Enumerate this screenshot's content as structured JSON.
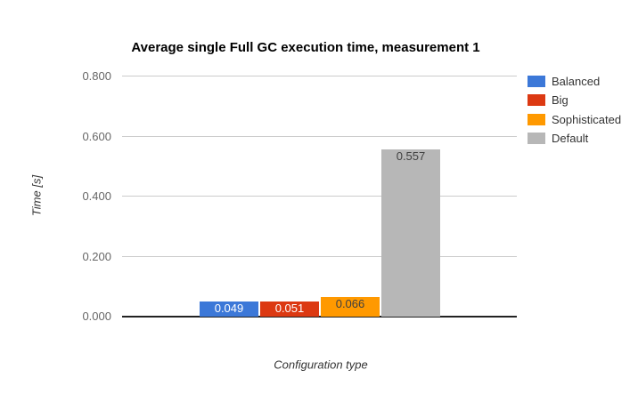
{
  "chart_data": {
    "type": "bar",
    "title": "Average single Full GC execution time, measurement 1",
    "xlabel": "Configuration type",
    "ylabel": "Time [s]",
    "series": [
      {
        "name": "Balanced",
        "value": 0.049,
        "label": "0.049",
        "color": "#3c78d8",
        "label_color": "#ffffff"
      },
      {
        "name": "Big",
        "value": 0.051,
        "label": "0.051",
        "color": "#dc3912",
        "label_color": "#ffffff"
      },
      {
        "name": "Sophisticated",
        "value": 0.066,
        "label": "0.066",
        "color": "#ff9900",
        "label_color": "#404040"
      },
      {
        "name": "Default",
        "value": 0.557,
        "label": "0.557",
        "color": "#b7b7b7",
        "label_color": "#404040"
      }
    ],
    "ylim": [
      0,
      0.8
    ],
    "yticks": [
      "0.000",
      "0.200",
      "0.400",
      "0.600",
      "0.800"
    ],
    "grid": true,
    "legend_position": "right",
    "baseline_color": "#222222",
    "gridline_color": "#cccccc"
  }
}
